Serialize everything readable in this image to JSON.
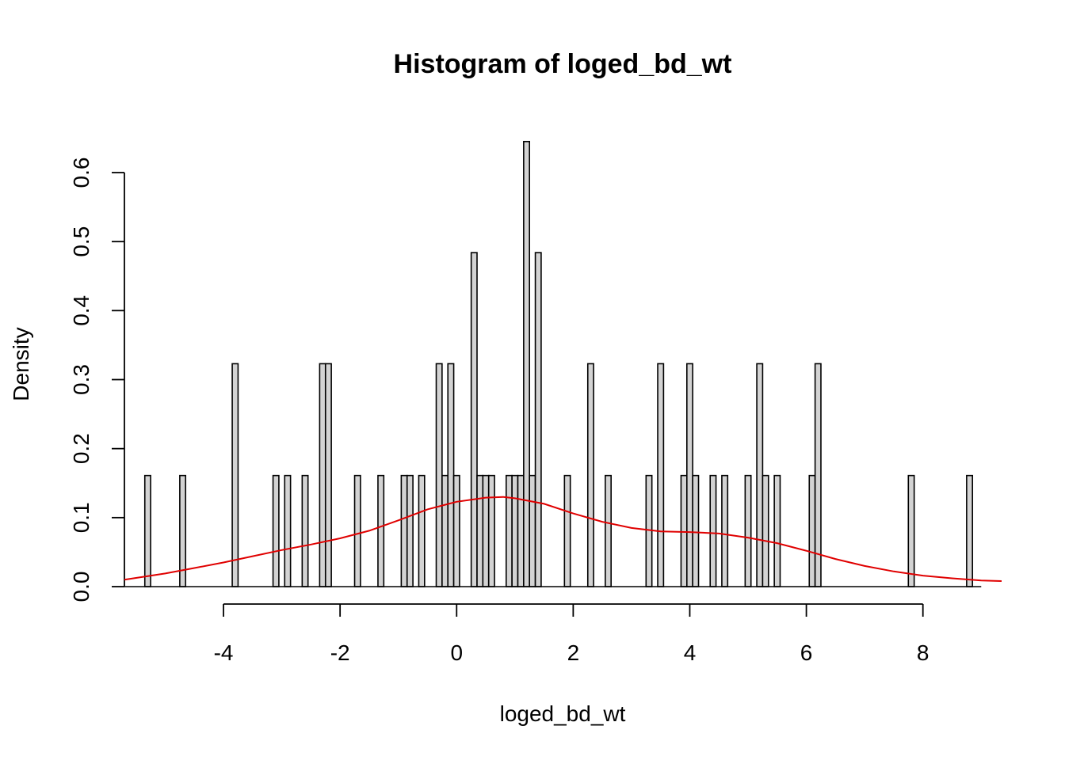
{
  "chart_data": {
    "type": "bar",
    "title": "Histogram of loged_bd_wt",
    "xlabel": "loged_bd_wt",
    "ylabel": "Density",
    "bin_width": 0.1,
    "xlim": [
      -5.7,
      9.35
    ],
    "ylim": [
      0,
      0.6
    ],
    "x_ticks": [
      -4,
      -2,
      0,
      2,
      4,
      6,
      8
    ],
    "x_tick_labels": [
      "-4",
      "-2",
      "0",
      "2",
      "4",
      "6",
      "8"
    ],
    "y_ticks": [
      0.0,
      0.1,
      0.2,
      0.3,
      0.4,
      0.5,
      0.6
    ],
    "y_tick_labels": [
      "0.0",
      "0.1",
      "0.2",
      "0.3",
      "0.4",
      "0.5",
      "0.6"
    ],
    "bins": [
      {
        "x": -5.3,
        "density": 0.161
      },
      {
        "x": -4.7,
        "density": 0.161
      },
      {
        "x": -3.8,
        "density": 0.323
      },
      {
        "x": -3.1,
        "density": 0.161
      },
      {
        "x": -2.9,
        "density": 0.161
      },
      {
        "x": -2.6,
        "density": 0.161
      },
      {
        "x": -2.3,
        "density": 0.323
      },
      {
        "x": -2.2,
        "density": 0.323
      },
      {
        "x": -1.7,
        "density": 0.161
      },
      {
        "x": -1.3,
        "density": 0.161
      },
      {
        "x": -0.9,
        "density": 0.161
      },
      {
        "x": -0.8,
        "density": 0.161
      },
      {
        "x": -0.6,
        "density": 0.161
      },
      {
        "x": -0.3,
        "density": 0.323
      },
      {
        "x": -0.2,
        "density": 0.161
      },
      {
        "x": -0.1,
        "density": 0.323
      },
      {
        "x": 0.0,
        "density": 0.161
      },
      {
        "x": 0.3,
        "density": 0.484
      },
      {
        "x": 0.4,
        "density": 0.161
      },
      {
        "x": 0.5,
        "density": 0.161
      },
      {
        "x": 0.6,
        "density": 0.161
      },
      {
        "x": 0.9,
        "density": 0.161
      },
      {
        "x": 1.0,
        "density": 0.161
      },
      {
        "x": 1.1,
        "density": 0.161
      },
      {
        "x": 1.2,
        "density": 0.645
      },
      {
        "x": 1.3,
        "density": 0.161
      },
      {
        "x": 1.4,
        "density": 0.484
      },
      {
        "x": 1.9,
        "density": 0.161
      },
      {
        "x": 2.3,
        "density": 0.323
      },
      {
        "x": 2.6,
        "density": 0.161
      },
      {
        "x": 3.3,
        "density": 0.161
      },
      {
        "x": 3.5,
        "density": 0.323
      },
      {
        "x": 3.9,
        "density": 0.161
      },
      {
        "x": 4.0,
        "density": 0.323
      },
      {
        "x": 4.1,
        "density": 0.161
      },
      {
        "x": 4.4,
        "density": 0.161
      },
      {
        "x": 4.6,
        "density": 0.161
      },
      {
        "x": 5.0,
        "density": 0.161
      },
      {
        "x": 5.2,
        "density": 0.323
      },
      {
        "x": 5.3,
        "density": 0.161
      },
      {
        "x": 5.5,
        "density": 0.161
      },
      {
        "x": 6.1,
        "density": 0.161
      },
      {
        "x": 6.2,
        "density": 0.323
      },
      {
        "x": 7.8,
        "density": 0.161
      },
      {
        "x": 8.8,
        "density": 0.161
      }
    ],
    "density_curve": {
      "color": "#e00000",
      "points": [
        [
          -5.7,
          0.01
        ],
        [
          -5.0,
          0.019
        ],
        [
          -4.5,
          0.027
        ],
        [
          -4.0,
          0.035
        ],
        [
          -3.5,
          0.044
        ],
        [
          -3.0,
          0.053
        ],
        [
          -2.5,
          0.061
        ],
        [
          -2.0,
          0.07
        ],
        [
          -1.5,
          0.081
        ],
        [
          -1.0,
          0.096
        ],
        [
          -0.5,
          0.112
        ],
        [
          0.0,
          0.123
        ],
        [
          0.5,
          0.129
        ],
        [
          0.8,
          0.13
        ],
        [
          1.0,
          0.128
        ],
        [
          1.5,
          0.12
        ],
        [
          2.0,
          0.106
        ],
        [
          2.5,
          0.094
        ],
        [
          3.0,
          0.085
        ],
        [
          3.5,
          0.08
        ],
        [
          4.0,
          0.079
        ],
        [
          4.5,
          0.077
        ],
        [
          5.0,
          0.071
        ],
        [
          5.5,
          0.063
        ],
        [
          6.0,
          0.052
        ],
        [
          6.5,
          0.04
        ],
        [
          7.0,
          0.03
        ],
        [
          7.5,
          0.022
        ],
        [
          8.0,
          0.016
        ],
        [
          8.5,
          0.012
        ],
        [
          9.0,
          0.009
        ],
        [
          9.35,
          0.008
        ]
      ]
    },
    "bar_fill": "#d3d3d3",
    "bar_stroke": "#000000",
    "grid": false,
    "legend": "none"
  }
}
